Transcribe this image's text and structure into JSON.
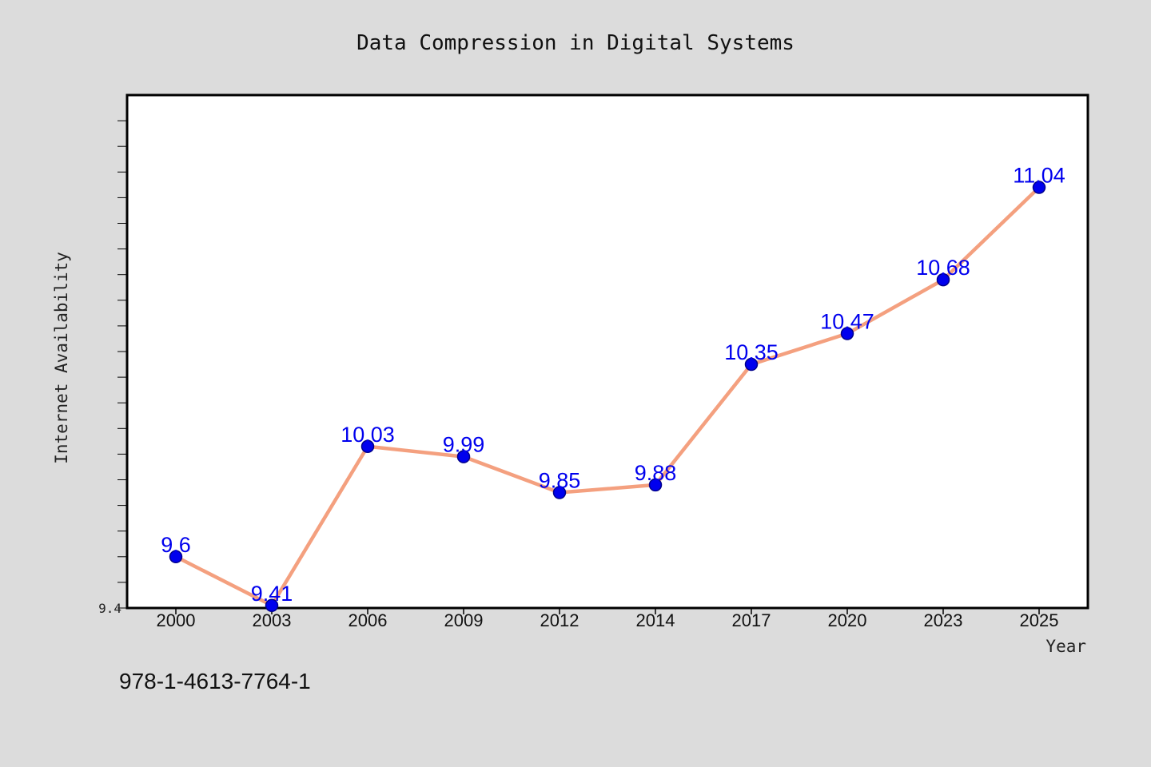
{
  "chart_data": {
    "type": "line",
    "title": "Data Compression in Digital Systems",
    "xlabel": "Year",
    "ylabel": "Internet Availability",
    "x": [
      "2000",
      "2003",
      "2006",
      "2009",
      "2012",
      "2014",
      "2017",
      "2020",
      "2023",
      "2025"
    ],
    "series": [
      {
        "values": [
          9.6,
          9.41,
          10.03,
          9.99,
          9.85,
          9.88,
          10.35,
          10.47,
          10.68,
          11.04
        ]
      }
    ],
    "data_labels": [
      "9.6",
      "9.41",
      "10.03",
      "9.99",
      "9.85",
      "9.88",
      "10.35",
      "10.47",
      "10.68",
      "11.04"
    ],
    "ylim": [
      9.4,
      11.4
    ],
    "y_tick_labels": [
      "9.4"
    ],
    "grid": false,
    "legend": "none"
  },
  "footer": {
    "isbn": "978-1-4613-7764-1"
  },
  "colors": {
    "background": "#dcdcdc",
    "plot_background": "#ffffff",
    "line": "#f4a07f",
    "marker_fill": "#0000ee",
    "marker_edge": "#00008b",
    "data_label": "#0000ee",
    "frame": "#000000"
  }
}
